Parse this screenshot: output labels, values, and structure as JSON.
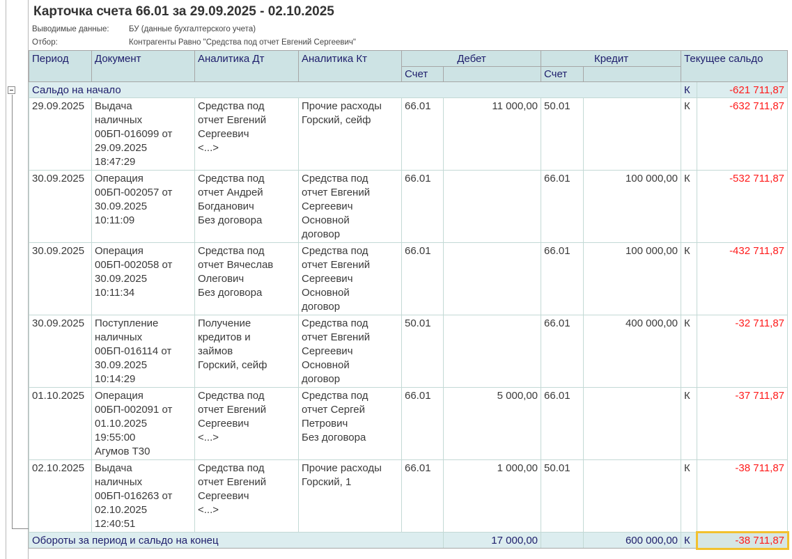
{
  "report": {
    "title": "Карточка счета 66.01 за 29.09.2025 - 02.10.2025",
    "output_label": "Выводимые данные:",
    "output_value": "БУ (данные бухгалтерского учета)",
    "filter_label": "Отбор:",
    "filter_value": "Контрагенты Равно \"Средства под отчет Евгений Сергеевич\""
  },
  "headers": {
    "period": "Период",
    "document": "Документ",
    "analytics_dt": "Аналитика Дт",
    "analytics_kt": "Аналитика Кт",
    "debit": "Дебет",
    "credit": "Кредит",
    "balance": "Текущее сальдо",
    "account": "Счет"
  },
  "opening": {
    "label": "Сальдо на начало",
    "side": "К",
    "balance": "-621 711,87"
  },
  "rows": [
    {
      "period": "29.09.2025",
      "document": [
        "Выдача",
        "наличных",
        "00БП-016099 от",
        "29.09.2025",
        "18:47:29"
      ],
      "an_dt": [
        "Средства под",
        "отчет Евгений",
        "Сергеевич",
        "<...>"
      ],
      "an_kt": [
        "Прочие расходы",
        "Горский, сейф"
      ],
      "dt_acc": "66.01",
      "dt_sum": "11 000,00",
      "kt_acc": "50.01",
      "kt_sum": "",
      "side": "К",
      "balance": "-632 711,87"
    },
    {
      "period": "30.09.2025",
      "document": [
        "Операция",
        "00БП-002057 от",
        "30.09.2025",
        "10:11:09"
      ],
      "an_dt": [
        "Средства под",
        "отчет Андрей",
        "Богданович",
        "Без договора"
      ],
      "an_kt": [
        "Средства под",
        "отчет Евгений",
        "Сергеевич",
        "Основной",
        "договор"
      ],
      "dt_acc": "66.01",
      "dt_sum": "",
      "kt_acc": "66.01",
      "kt_sum": "100 000,00",
      "side": "К",
      "balance": "-532 711,87"
    },
    {
      "period": "30.09.2025",
      "document": [
        "Операция",
        "00БП-002058 от",
        "30.09.2025",
        "10:11:34"
      ],
      "an_dt": [
        "Средства под",
        "отчет Вячеслав",
        "Олегович",
        "Без договора"
      ],
      "an_kt": [
        "Средства под",
        "отчет Евгений",
        "Сергеевич",
        "Основной",
        "договор"
      ],
      "dt_acc": "66.01",
      "dt_sum": "",
      "kt_acc": "66.01",
      "kt_sum": "100 000,00",
      "side": "К",
      "balance": "-432 711,87"
    },
    {
      "period": "30.09.2025",
      "document": [
        "Поступление",
        "наличных",
        "00БП-016114 от",
        "30.09.2025",
        "10:14:29"
      ],
      "an_dt": [
        "Получение",
        "кредитов и",
        "займов",
        "Горский, сейф"
      ],
      "an_kt": [
        "Средства под",
        "отчет Евгений",
        "Сергеевич",
        "Основной",
        "договор"
      ],
      "dt_acc": "50.01",
      "dt_sum": "",
      "kt_acc": "66.01",
      "kt_sum": "400 000,00",
      "side": "К",
      "balance": "-32 711,87"
    },
    {
      "period": "01.10.2025",
      "document": [
        "Операция",
        "00БП-002091 от",
        "01.10.2025",
        "19:55:00",
        "Агумов Т30"
      ],
      "an_dt": [
        "Средства под",
        "отчет Евгений",
        "Сергеевич",
        "<...>"
      ],
      "an_kt": [
        "Средства под",
        "отчет Сергей",
        "Петрович",
        "Без договора"
      ],
      "dt_acc": "66.01",
      "dt_sum": "5 000,00",
      "kt_acc": "66.01",
      "kt_sum": "",
      "side": "К",
      "balance": "-37 711,87"
    },
    {
      "period": "02.10.2025",
      "document": [
        "Выдача",
        "наличных",
        "00БП-016263 от",
        "02.10.2025",
        "12:40:51"
      ],
      "an_dt": [
        "Средства под",
        "отчет Евгений",
        "Сергеевич",
        "<...>"
      ],
      "an_kt": [
        "Прочие расходы",
        "Горский, 1"
      ],
      "dt_acc": "66.01",
      "dt_sum": "1 000,00",
      "kt_acc": "50.01",
      "kt_sum": "",
      "side": "К",
      "balance": "-38 711,87"
    }
  ],
  "total": {
    "label": "Обороты за период и сальдо на конец",
    "dt_sum": "17 000,00",
    "kt_sum": "600 000,00",
    "side": "К",
    "balance": "-38 711,87"
  },
  "colors": {
    "header_bg": "#cde3e4",
    "group_bg": "#dcedef",
    "negative": "#ff1a1a",
    "highlight": "#f2c12e"
  }
}
